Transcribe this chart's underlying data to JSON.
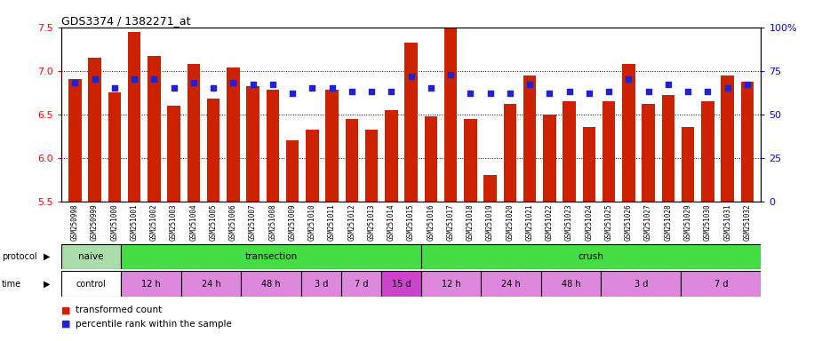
{
  "title": "GDS3374 / 1382271_at",
  "samples": [
    "GSM250998",
    "GSM250999",
    "GSM251000",
    "GSM251001",
    "GSM251002",
    "GSM251003",
    "GSM251004",
    "GSM251005",
    "GSM251006",
    "GSM251007",
    "GSM251008",
    "GSM251009",
    "GSM251010",
    "GSM251011",
    "GSM251012",
    "GSM251013",
    "GSM251014",
    "GSM251015",
    "GSM251016",
    "GSM251017",
    "GSM251018",
    "GSM251019",
    "GSM251020",
    "GSM251021",
    "GSM251022",
    "GSM251023",
    "GSM251024",
    "GSM251025",
    "GSM251026",
    "GSM251027",
    "GSM251028",
    "GSM251029",
    "GSM251030",
    "GSM251031",
    "GSM251032"
  ],
  "bar_values": [
    6.9,
    7.15,
    6.75,
    7.45,
    7.17,
    6.6,
    7.08,
    6.68,
    7.04,
    6.82,
    6.78,
    6.2,
    6.32,
    6.78,
    6.45,
    6.32,
    6.55,
    7.32,
    6.48,
    7.5,
    6.45,
    5.8,
    6.62,
    6.95,
    6.5,
    6.65,
    6.35,
    6.65,
    7.08,
    6.62,
    6.72,
    6.35,
    6.65,
    6.95,
    6.87
  ],
  "percentile_values": [
    68,
    70,
    65,
    70,
    70,
    65,
    68,
    65,
    68,
    67,
    67,
    62,
    65,
    65,
    63,
    63,
    63,
    72,
    65,
    73,
    62,
    62,
    62,
    67,
    62,
    63,
    62,
    63,
    70,
    63,
    67,
    63,
    63,
    65,
    67
  ],
  "ylim_left": [
    5.5,
    7.5
  ],
  "ylim_right": [
    0,
    100
  ],
  "yticks_left": [
    5.5,
    6.0,
    6.5,
    7.0,
    7.5
  ],
  "yticks_right": [
    0,
    25,
    50,
    75,
    100
  ],
  "ytick_labels_right": [
    "0",
    "25",
    "50",
    "75",
    "100%"
  ],
  "bar_color": "#cc2200",
  "dot_color": "#2222cc",
  "bar_bottom": 5.5,
  "protocol_data": [
    {
      "label": "naive",
      "start": 0,
      "end": 3,
      "color": "#aaddaa"
    },
    {
      "label": "transection",
      "start": 3,
      "end": 18,
      "color": "#44dd44"
    },
    {
      "label": "crush",
      "start": 18,
      "end": 35,
      "color": "#44dd44"
    }
  ],
  "time_data": [
    {
      "label": "control",
      "start": 0,
      "end": 3,
      "color": "#ffffff"
    },
    {
      "label": "12 h",
      "start": 3,
      "end": 6,
      "color": "#dd88dd"
    },
    {
      "label": "24 h",
      "start": 6,
      "end": 9,
      "color": "#dd88dd"
    },
    {
      "label": "48 h",
      "start": 9,
      "end": 12,
      "color": "#dd88dd"
    },
    {
      "label": "3 d",
      "start": 12,
      "end": 14,
      "color": "#dd88dd"
    },
    {
      "label": "7 d",
      "start": 14,
      "end": 16,
      "color": "#dd88dd"
    },
    {
      "label": "15 d",
      "start": 16,
      "end": 18,
      "color": "#cc44cc"
    },
    {
      "label": "12 h",
      "start": 18,
      "end": 21,
      "color": "#dd88dd"
    },
    {
      "label": "24 h",
      "start": 21,
      "end": 24,
      "color": "#dd88dd"
    },
    {
      "label": "48 h",
      "start": 24,
      "end": 27,
      "color": "#dd88dd"
    },
    {
      "label": "3 d",
      "start": 27,
      "end": 31,
      "color": "#dd88dd"
    },
    {
      "label": "7 d",
      "start": 31,
      "end": 35,
      "color": "#dd88dd"
    }
  ],
  "background_color": "#ffffff",
  "label_bg_color": "#cccccc"
}
